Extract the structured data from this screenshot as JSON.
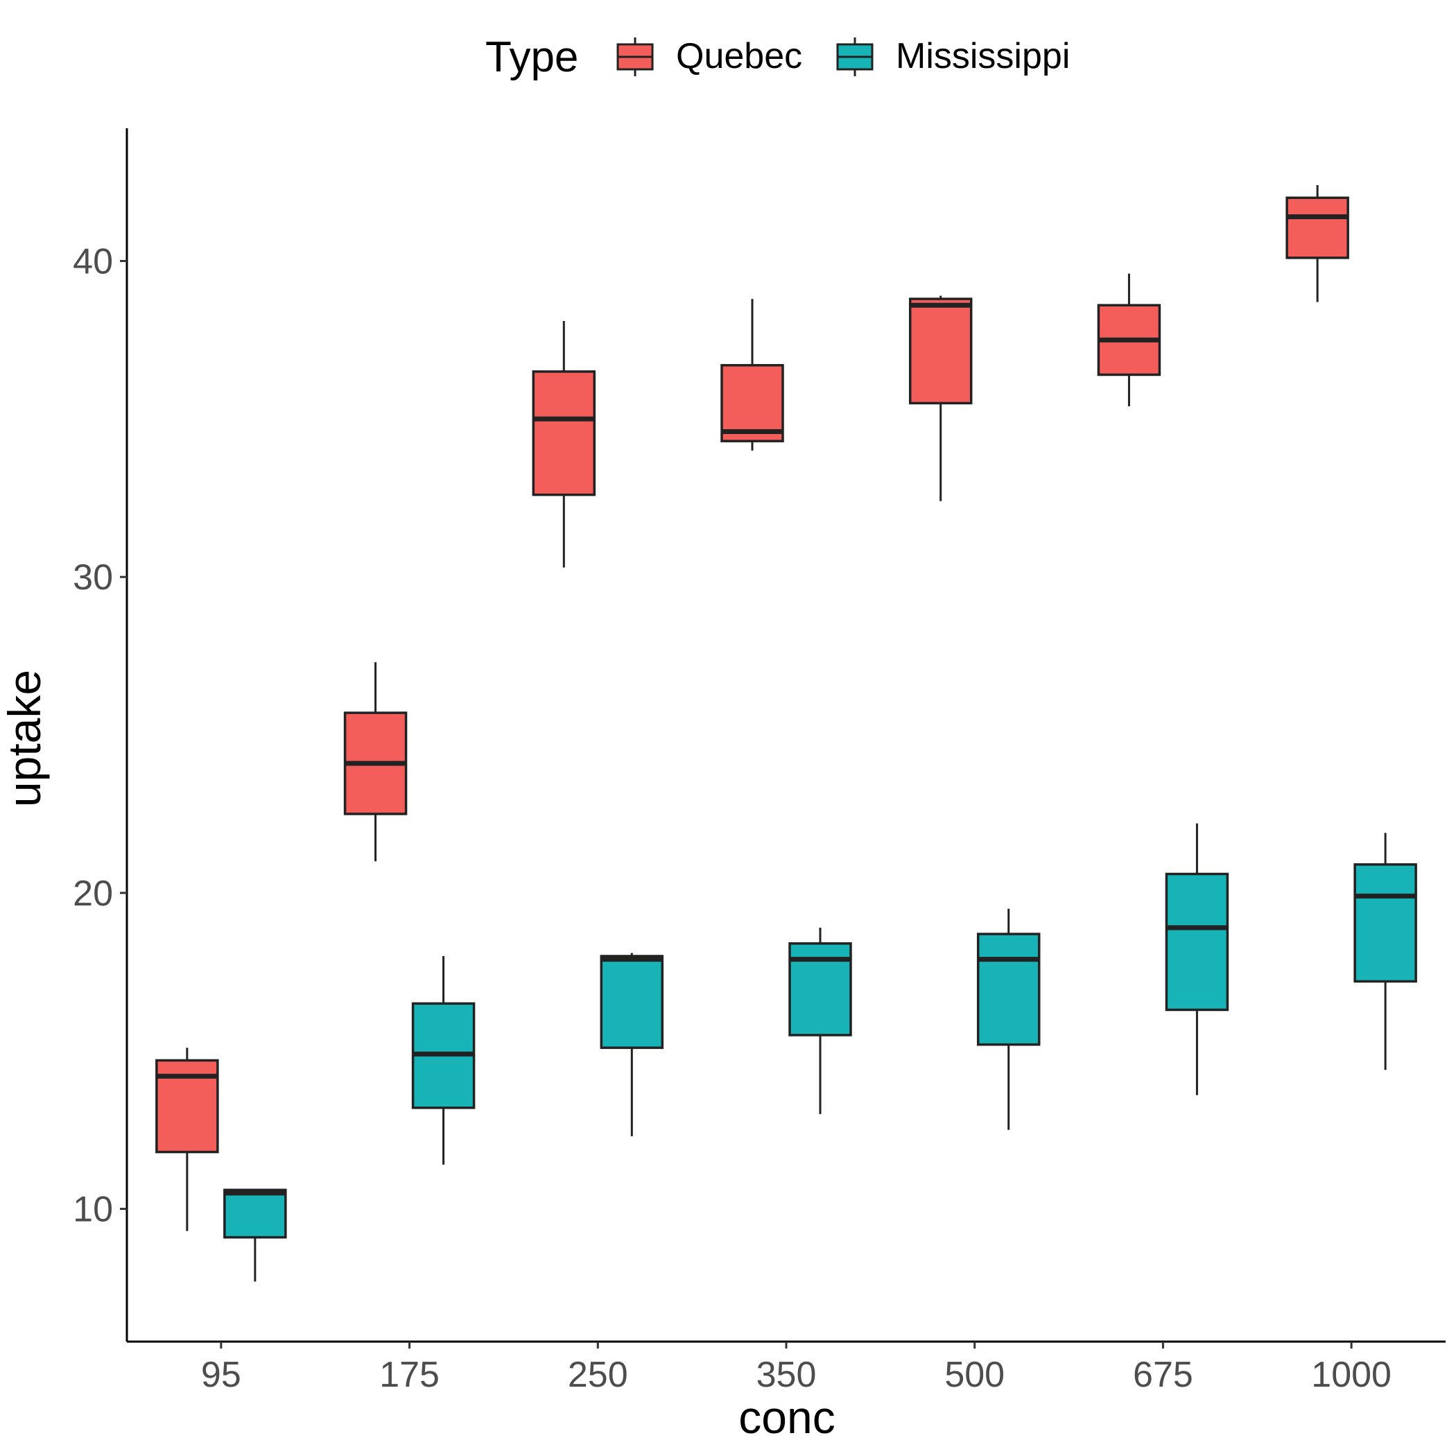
{
  "chart_data": {
    "type": "box",
    "categories": [
      "95",
      "175",
      "250",
      "350",
      "500",
      "675",
      "1000"
    ],
    "xlabel": "conc",
    "ylabel": "uptake",
    "ylim": [
      5.8,
      44.2
    ],
    "yticks": [
      10,
      20,
      30,
      40
    ],
    "grid": false,
    "legend": {
      "title": "Type",
      "position": "top",
      "entries": [
        "Quebec",
        "Mississippi"
      ]
    },
    "series": [
      {
        "name": "Quebec",
        "color": "#F35E5A",
        "boxes": [
          {
            "category": "95",
            "min": 9.3,
            "q1": 11.8,
            "median": 14.2,
            "q3": 14.7,
            "max": 15.1
          },
          {
            "category": "175",
            "min": 21.0,
            "q1": 22.5,
            "median": 24.1,
            "q3": 25.7,
            "max": 27.3
          },
          {
            "category": "250",
            "min": 30.3,
            "q1": 32.6,
            "median": 35.0,
            "q3": 36.5,
            "max": 38.1
          },
          {
            "category": "350",
            "min": 34.0,
            "q1": 34.3,
            "median": 34.6,
            "q3": 36.7,
            "max": 38.8
          },
          {
            "category": "500",
            "min": 32.4,
            "q1": 35.5,
            "median": 38.6,
            "q3": 38.8,
            "max": 38.9
          },
          {
            "category": "675",
            "min": 35.4,
            "q1": 36.4,
            "median": 37.5,
            "q3": 38.6,
            "max": 39.6
          },
          {
            "category": "1000",
            "min": 38.7,
            "q1": 40.1,
            "median": 41.4,
            "q3": 42.0,
            "max": 42.4
          }
        ]
      },
      {
        "name": "Mississippi",
        "color": "#17B3B7",
        "boxes": [
          {
            "category": "95",
            "min": 7.7,
            "q1": 9.1,
            "median": 10.5,
            "q3": 10.6,
            "max": 10.6
          },
          {
            "category": "175",
            "min": 11.4,
            "q1": 13.2,
            "median": 14.9,
            "q3": 16.5,
            "max": 18.0
          },
          {
            "category": "250",
            "min": 12.3,
            "q1": 15.1,
            "median": 17.9,
            "q3": 18.0,
            "max": 18.1
          },
          {
            "category": "350",
            "min": 13.0,
            "q1": 15.5,
            "median": 17.9,
            "q3": 18.4,
            "max": 18.9
          },
          {
            "category": "500",
            "min": 12.5,
            "q1": 15.2,
            "median": 17.9,
            "q3": 18.7,
            "max": 19.5
          },
          {
            "category": "675",
            "min": 13.6,
            "q1": 16.3,
            "median": 18.9,
            "q3": 20.6,
            "max": 22.2
          },
          {
            "category": "1000",
            "min": 14.4,
            "q1": 17.2,
            "median": 19.9,
            "q3": 20.9,
            "max": 21.9
          }
        ]
      }
    ]
  }
}
